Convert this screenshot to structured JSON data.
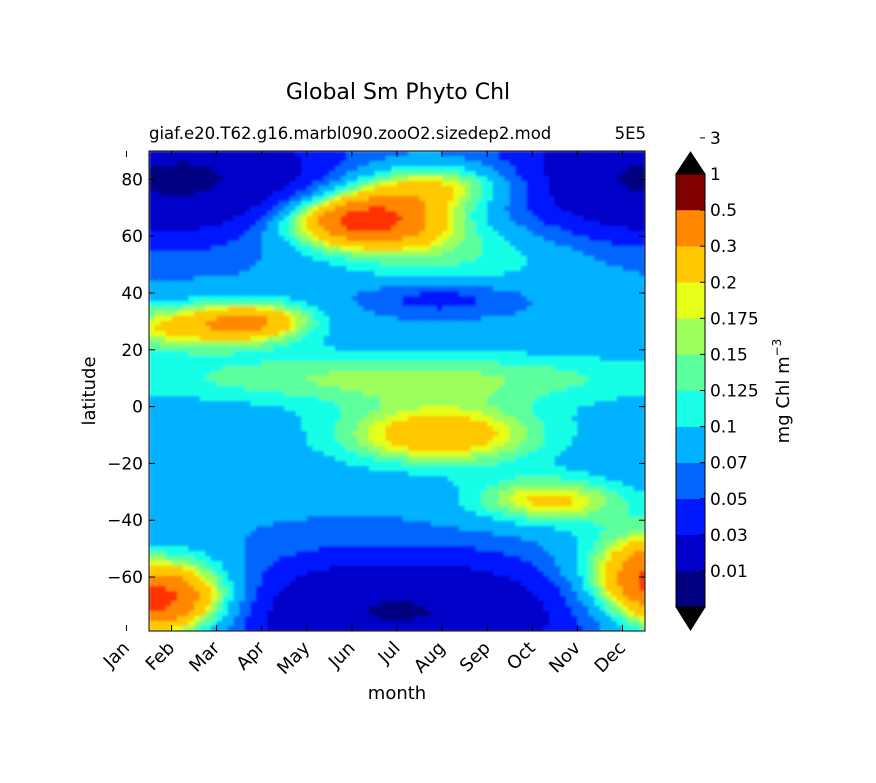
{
  "figure": {
    "title": "Global Sm Phyto Chl",
    "subtitle_left": "giaf.e20.T62.g16.marbl090.zooO2.sizedep2.mod",
    "subtitle_right": "5E5"
  },
  "chart_data": {
    "type": "heatmap",
    "title": "Global Sm Phyto Chl",
    "xlabel": "month",
    "ylabel": "latitude",
    "x_categories": [
      "Jan",
      "Feb",
      "Mar",
      "Apr",
      "May",
      "Jun",
      "Jul",
      "Aug",
      "Sep",
      "Oct",
      "Nov",
      "Dec"
    ],
    "xlim": [
      0.5,
      11.5
    ],
    "ylim": [
      -79,
      90
    ],
    "y_ticks": [
      80,
      60,
      40,
      20,
      0,
      -20,
      -40,
      -60
    ],
    "y_tick_labels": [
      "80",
      "60",
      "40",
      "20",
      "0",
      "−20",
      "−40",
      "−60"
    ],
    "colorbar": {
      "label": "mg Chl m",
      "label_superscript": "−3",
      "levels": [
        0.01,
        0.03,
        0.05,
        0.07,
        0.1,
        0.125,
        0.15,
        0.175,
        0.2,
        0.3,
        0.5,
        1,
        3
      ],
      "tick_labels": [
        "0.01",
        "0.03",
        "0.05",
        "0.07",
        "0.1",
        "0.125",
        "0.15",
        "0.175",
        "0.2",
        "0.3",
        "0.5",
        "1",
        "3"
      ],
      "colors": [
        "#000080",
        "#0000c8",
        "#0019ff",
        "#0066ff",
        "#00b2ff",
        "#19ffe6",
        "#5bff9c",
        "#9cff5b",
        "#e6ff19",
        "#ffc800",
        "#ff8800",
        "#ff3300",
        "#d40000",
        "#800000"
      ],
      "extend": "both"
    }
  }
}
